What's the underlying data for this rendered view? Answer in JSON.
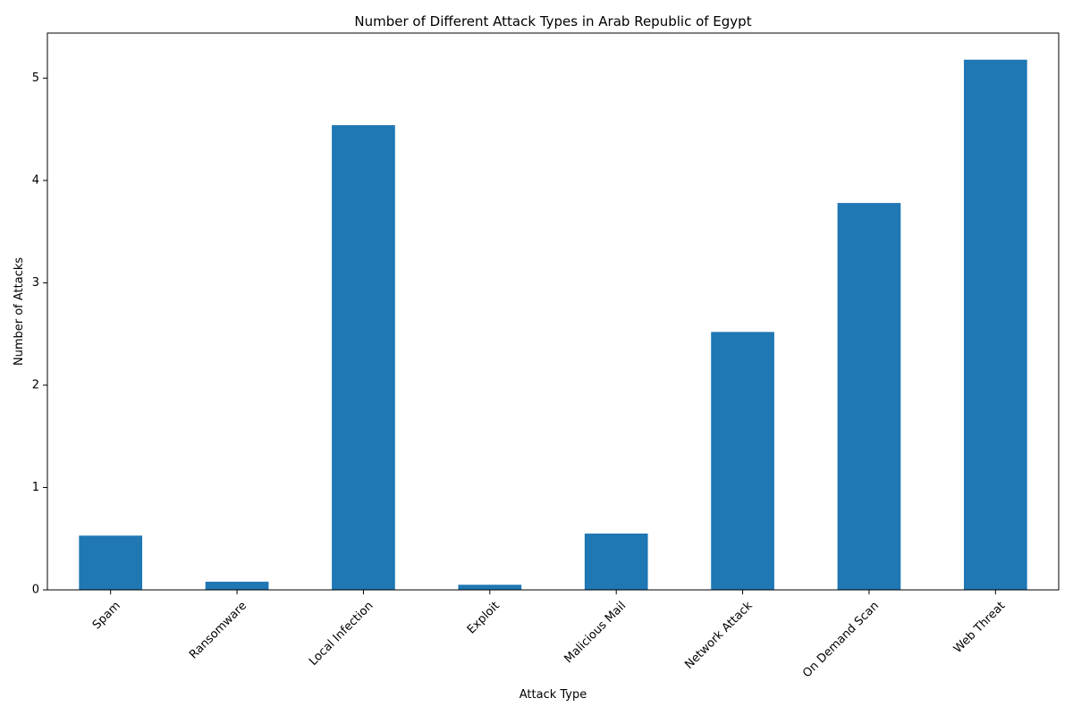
{
  "chart_data": {
    "type": "bar",
    "title": "Number of Different Attack Types in Arab Republic of Egypt",
    "xlabel": "Attack Type",
    "ylabel": "Number of Attacks",
    "categories": [
      "Spam",
      "Ransomware",
      "Local Infection",
      "Exploit",
      "Malicious Mail",
      "Network Attack",
      "On Demand Scan",
      "Web Threat"
    ],
    "values": [
      0.53,
      0.08,
      4.54,
      0.05,
      0.55,
      2.52,
      3.78,
      5.18
    ],
    "ylim": [
      0,
      5.44
    ],
    "yticks": [
      0,
      1,
      2,
      3,
      4,
      5
    ],
    "grid": false,
    "legend": "none",
    "bar_color": "#1f77b4"
  }
}
